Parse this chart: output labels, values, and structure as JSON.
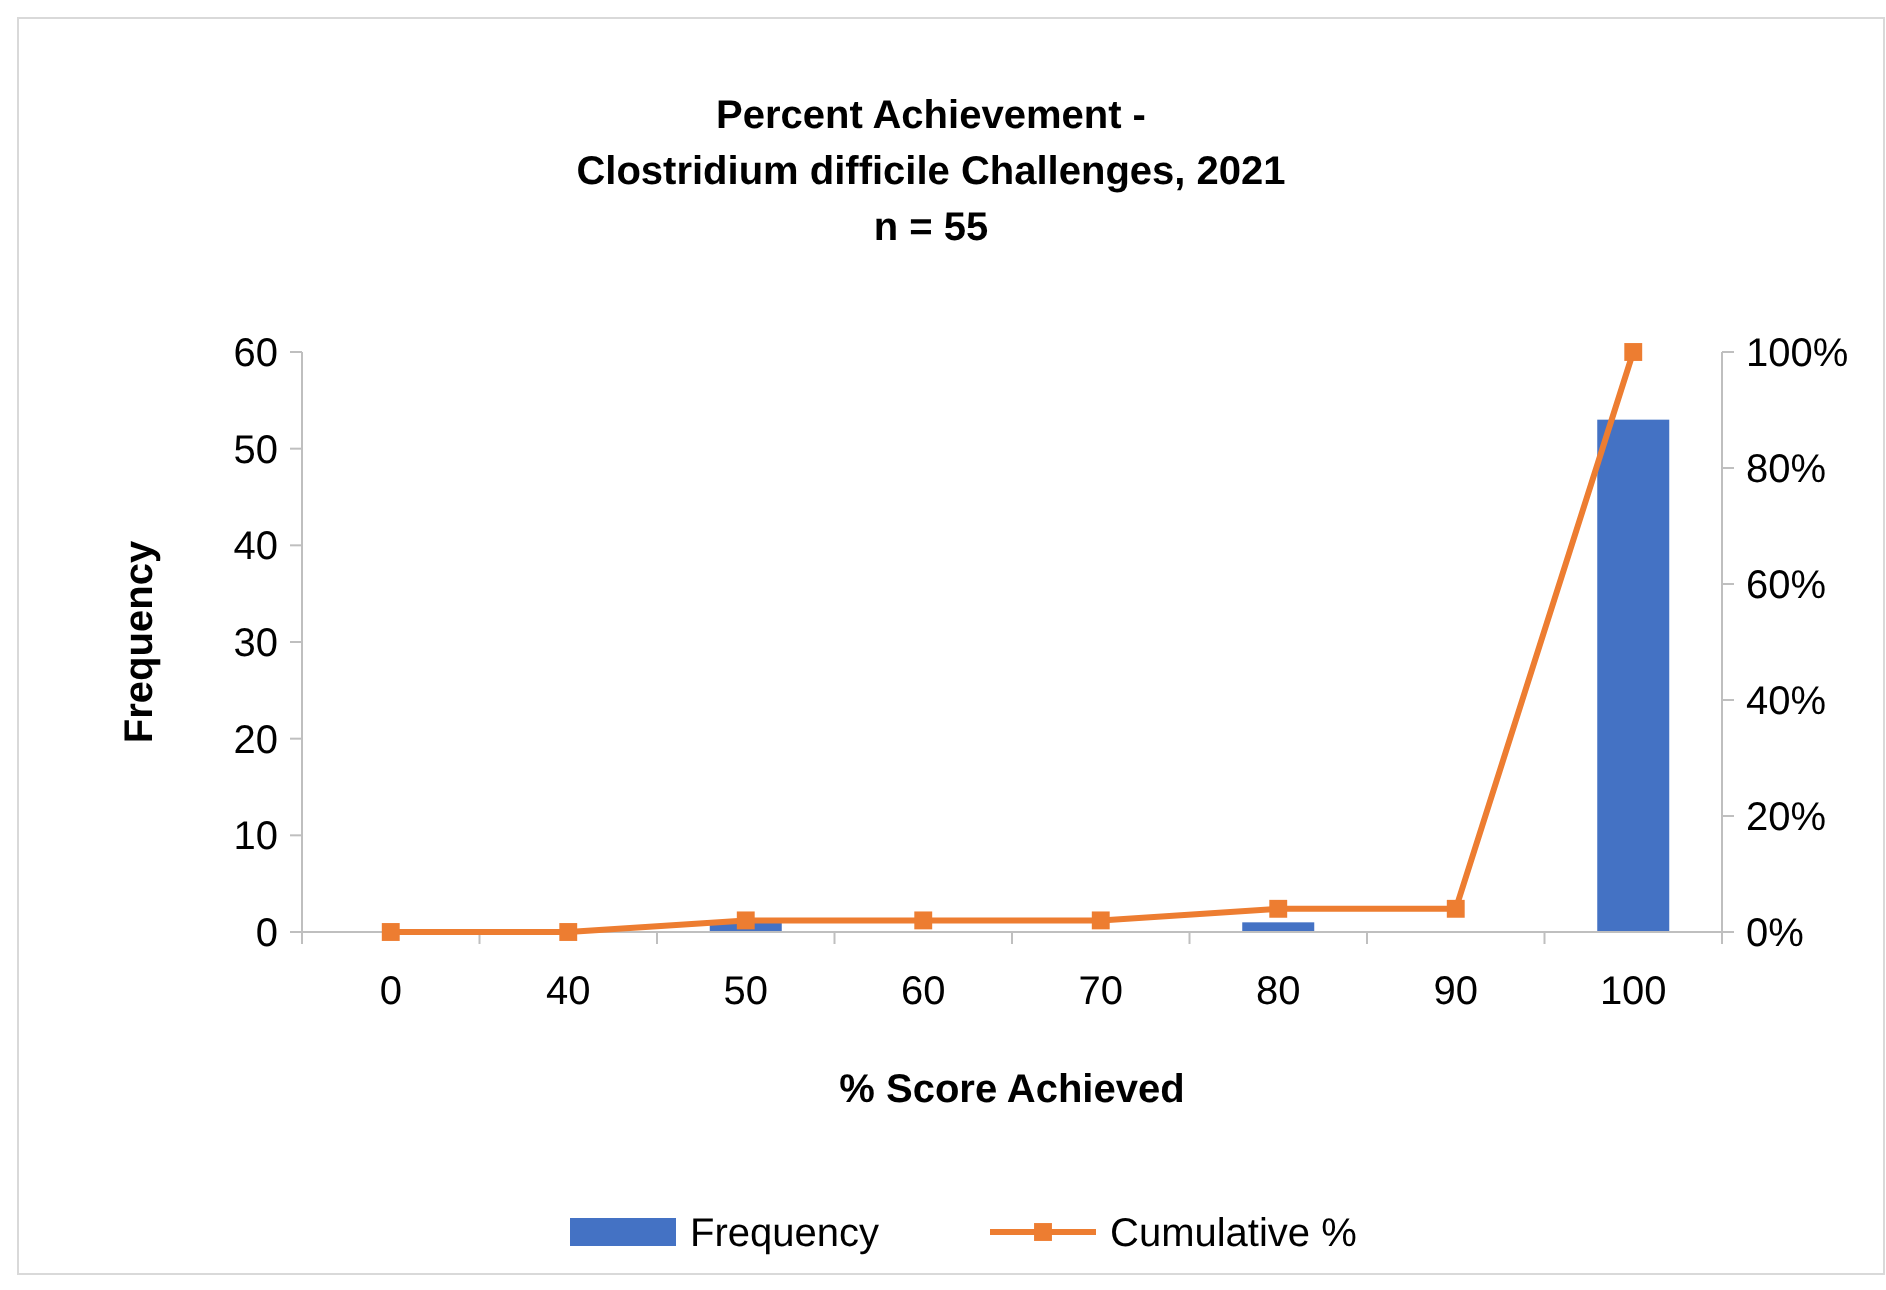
{
  "chart_data": {
    "type": "bar",
    "title": "Percent Achievement -\nClostridium difficile Challenges, 2021",
    "subtitle": "n = 55",
    "xlabel": "% Score Achieved",
    "ylabel": "Frequency",
    "categories": [
      "0",
      "40",
      "50",
      "60",
      "70",
      "80",
      "90",
      "100"
    ],
    "series": [
      {
        "name": "Frequency",
        "color": "#4472c4",
        "values": [
          0,
          0,
          1,
          0,
          0,
          1,
          0,
          53
        ]
      },
      {
        "name": "Cumulative %",
        "type": "line",
        "axis": "y2",
        "color": "#ed7d31",
        "values": [
          0,
          0,
          2,
          2,
          2,
          4,
          4,
          100
        ]
      }
    ],
    "ylim": [
      0,
      60
    ],
    "yticks": [
      0,
      10,
      20,
      30,
      40,
      50,
      60
    ],
    "y2lim": [
      0,
      100
    ],
    "y2ticks": [
      {
        "value": 0,
        "label": "0%"
      },
      {
        "value": 20,
        "label": "20%"
      },
      {
        "value": 40,
        "label": "40%"
      },
      {
        "value": 60,
        "label": "60%"
      },
      {
        "value": 80,
        "label": "80%"
      },
      {
        "value": 100,
        "label": "100%"
      }
    ],
    "marker": "square",
    "legend": "bottom",
    "grid": false
  }
}
